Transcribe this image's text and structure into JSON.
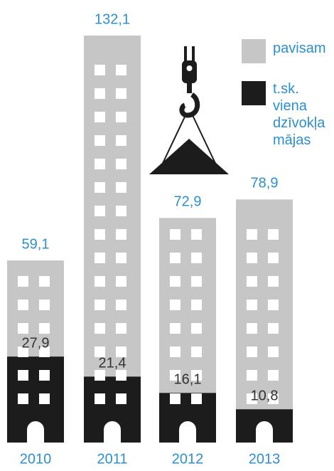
{
  "chart_data": {
    "type": "bar",
    "categories": [
      "2010",
      "2011",
      "2012",
      "2013"
    ],
    "series": [
      {
        "name": "pavisam",
        "color": "#c6c6c6",
        "values": [
          59.1,
          132.1,
          72.9,
          78.9
        ],
        "value_labels": [
          "59,1",
          "132,1",
          "72,9",
          "78,9"
        ]
      },
      {
        "name": "t.sk. viena dzīvokļa mājas",
        "color": "#1c1c1c",
        "values": [
          27.9,
          21.4,
          16.1,
          10.8
        ],
        "value_labels": [
          "27,9",
          "21,4",
          "16,1",
          "10,8"
        ]
      }
    ]
  }
}
